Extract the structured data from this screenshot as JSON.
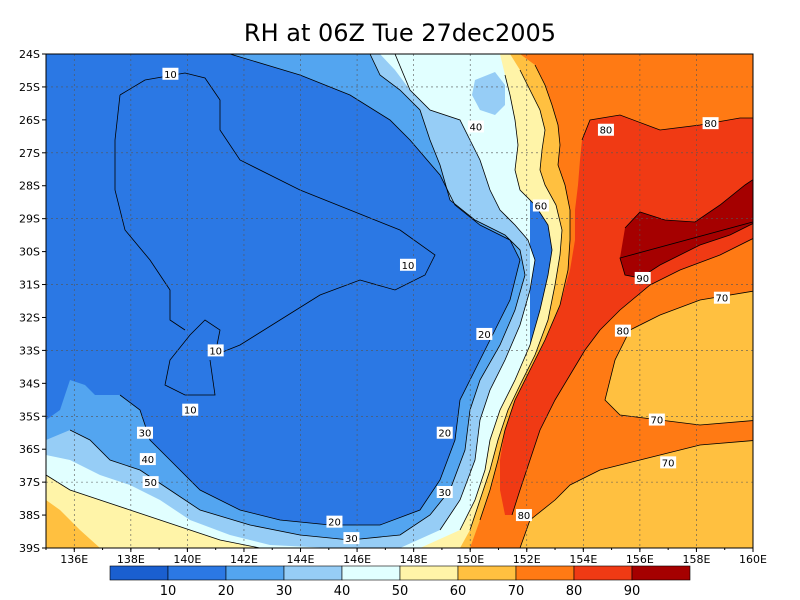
{
  "title": "RH at 06Z Tue 27dec2005",
  "map": {
    "lon_ticks": [
      "136E",
      "138E",
      "140E",
      "142E",
      "144E",
      "146E",
      "148E",
      "150E",
      "152E",
      "154E",
      "156E",
      "158E",
      "160E"
    ],
    "lat_ticks": [
      "24S",
      "25S",
      "26S",
      "27S",
      "28S",
      "29S",
      "30S",
      "31S",
      "32S",
      "33S",
      "34S",
      "35S",
      "36S",
      "37S",
      "38S",
      "39S"
    ],
    "lon_range": [
      135,
      160
    ],
    "lat_range": [
      -39,
      -24
    ],
    "contour_labels": [
      {
        "text": "10",
        "lon": 139.4,
        "lat": -24.6
      },
      {
        "text": "10",
        "lon": 147.8,
        "lat": -30.4
      },
      {
        "text": "10",
        "lon": 141.0,
        "lat": -33.0
      },
      {
        "text": "10",
        "lon": 140.1,
        "lat": -34.8
      },
      {
        "text": "20",
        "lon": 150.5,
        "lat": -32.5
      },
      {
        "text": "20",
        "lon": 149.1,
        "lat": -35.5
      },
      {
        "text": "20",
        "lon": 145.2,
        "lat": -38.2
      },
      {
        "text": "30",
        "lon": 138.5,
        "lat": -35.5
      },
      {
        "text": "30",
        "lon": 149.1,
        "lat": -37.3
      },
      {
        "text": "30",
        "lon": 145.8,
        "lat": -38.7
      },
      {
        "text": "40",
        "lon": 150.2,
        "lat": -26.2
      },
      {
        "text": "40",
        "lon": 138.6,
        "lat": -36.3
      },
      {
        "text": "50",
        "lon": 138.7,
        "lat": -37.0
      },
      {
        "text": "60",
        "lon": 152.5,
        "lat": -28.6
      },
      {
        "text": "80",
        "lon": 154.8,
        "lat": -26.3
      },
      {
        "text": "80",
        "lon": 158.5,
        "lat": -26.1
      },
      {
        "text": "80",
        "lon": 155.4,
        "lat": -32.4
      },
      {
        "text": "80",
        "lon": 151.9,
        "lat": -38.0
      },
      {
        "text": "90",
        "lon": 156.1,
        "lat": -30.8
      },
      {
        "text": "70",
        "lon": 158.9,
        "lat": -31.4
      },
      {
        "text": "70",
        "lon": 156.6,
        "lat": -35.1
      },
      {
        "text": "70",
        "lon": 157.0,
        "lat": -36.4
      }
    ]
  },
  "colorbar": {
    "colors": [
      "#1a5fd0",
      "#2b78e4",
      "#53a5f0",
      "#96cdf6",
      "#e1ffff",
      "#fff4a8",
      "#ffc040",
      "#ff7a14",
      "#f03a14",
      "#a50000"
    ],
    "labels": [
      "10",
      "20",
      "30",
      "40",
      "50",
      "60",
      "70",
      "80",
      "90"
    ]
  },
  "palette": {
    "rh10": "#1a5fd0",
    "rh10_20": "#2b78e4",
    "rh20_30": "#53a5f0",
    "rh30_40": "#96cdf6",
    "rh40_50": "#e1ffff",
    "rh50_60": "#fff4a8",
    "rh60_70": "#ffc040",
    "rh70_80": "#ff7a14",
    "rh80_90": "#f03a14",
    "rh90": "#a50000"
  }
}
